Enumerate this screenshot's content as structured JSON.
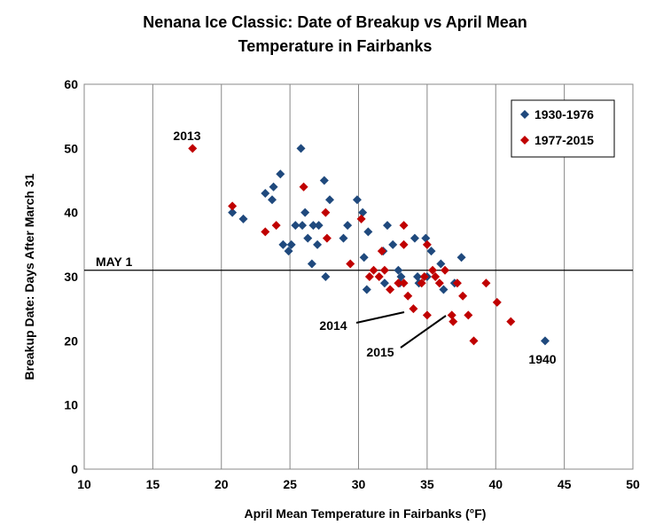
{
  "chart_data": {
    "type": "scatter",
    "title_lines": [
      "Nenana Ice Classic: Date of Breakup vs April Mean",
      "Temperature in Fairbanks"
    ],
    "xlabel": "April Mean Temperature in Fairbanks (°F)",
    "ylabel": "Breakup Date: Days After March 31",
    "xlim": [
      10,
      50
    ],
    "ylim": [
      0,
      60
    ],
    "xticks": [
      "10",
      "15",
      "20",
      "25",
      "30",
      "35",
      "40",
      "45",
      "50"
    ],
    "yticks": [
      "0",
      "10",
      "20",
      "30",
      "40",
      "50",
      "60"
    ],
    "grid": "vertical",
    "legend_position": "top-right",
    "reference_line": {
      "label": "MAY 1",
      "y": 31
    },
    "series": [
      {
        "name": "1930-1976",
        "color": "#1F497D",
        "points": [
          [
            20.8,
            40
          ],
          [
            21.6,
            39
          ],
          [
            23.2,
            43
          ],
          [
            23.7,
            42
          ],
          [
            23.8,
            44
          ],
          [
            24.3,
            46
          ],
          [
            24.5,
            35
          ],
          [
            24.9,
            34
          ],
          [
            25.1,
            35
          ],
          [
            25.4,
            38
          ],
          [
            25.8,
            50
          ],
          [
            25.9,
            38
          ],
          [
            26.1,
            40
          ],
          [
            26.3,
            36
          ],
          [
            26.6,
            32
          ],
          [
            26.7,
            38
          ],
          [
            27.0,
            35
          ],
          [
            27.1,
            38
          ],
          [
            27.5,
            45
          ],
          [
            27.6,
            30
          ],
          [
            27.9,
            42
          ],
          [
            28.9,
            36
          ],
          [
            29.2,
            38
          ],
          [
            29.9,
            42
          ],
          [
            30.3,
            40
          ],
          [
            30.4,
            33
          ],
          [
            30.6,
            28
          ],
          [
            30.7,
            37
          ],
          [
            31.8,
            34
          ],
          [
            31.9,
            29
          ],
          [
            32.1,
            38
          ],
          [
            32.5,
            35
          ],
          [
            32.9,
            31
          ],
          [
            33.1,
            30
          ],
          [
            33.0,
            29
          ],
          [
            34.1,
            36
          ],
          [
            34.3,
            30
          ],
          [
            34.4,
            29
          ],
          [
            34.9,
            36
          ],
          [
            35.3,
            34
          ],
          [
            35.0,
            30
          ],
          [
            36.0,
            32
          ],
          [
            36.2,
            28
          ],
          [
            37.0,
            29
          ],
          [
            37.5,
            33
          ],
          [
            43.6,
            20
          ]
        ]
      },
      {
        "name": "1977-2015",
        "color": "#C00000",
        "points": [
          [
            17.9,
            50
          ],
          [
            20.8,
            41
          ],
          [
            23.2,
            37
          ],
          [
            24.0,
            38
          ],
          [
            26.0,
            44
          ],
          [
            27.6,
            40
          ],
          [
            27.7,
            36
          ],
          [
            29.4,
            32
          ],
          [
            30.2,
            39
          ],
          [
            30.8,
            30
          ],
          [
            31.1,
            31
          ],
          [
            31.5,
            30
          ],
          [
            31.9,
            31
          ],
          [
            31.7,
            34
          ],
          [
            32.3,
            28
          ],
          [
            32.9,
            29
          ],
          [
            33.3,
            38
          ],
          [
            33.3,
            35
          ],
          [
            33.3,
            29
          ],
          [
            33.6,
            27
          ],
          [
            34.0,
            25
          ],
          [
            34.6,
            29
          ],
          [
            34.8,
            30
          ],
          [
            35.0,
            35
          ],
          [
            35.0,
            24
          ],
          [
            35.4,
            31
          ],
          [
            35.6,
            30
          ],
          [
            35.9,
            29
          ],
          [
            36.3,
            31
          ],
          [
            36.8,
            24
          ],
          [
            36.9,
            23
          ],
          [
            37.2,
            29
          ],
          [
            37.6,
            27
          ],
          [
            38.0,
            24
          ],
          [
            38.4,
            20
          ],
          [
            39.3,
            29
          ],
          [
            40.1,
            26
          ],
          [
            41.1,
            23
          ]
        ]
      }
    ],
    "annotations": [
      {
        "text": "2013",
        "x": 17.9,
        "y": 50
      },
      {
        "text": "2014",
        "x": 34.0,
        "y": 25
      },
      {
        "text": "2015",
        "x": 36.8,
        "y": 24
      },
      {
        "text": "1940",
        "x": 43.6,
        "y": 20
      }
    ]
  }
}
